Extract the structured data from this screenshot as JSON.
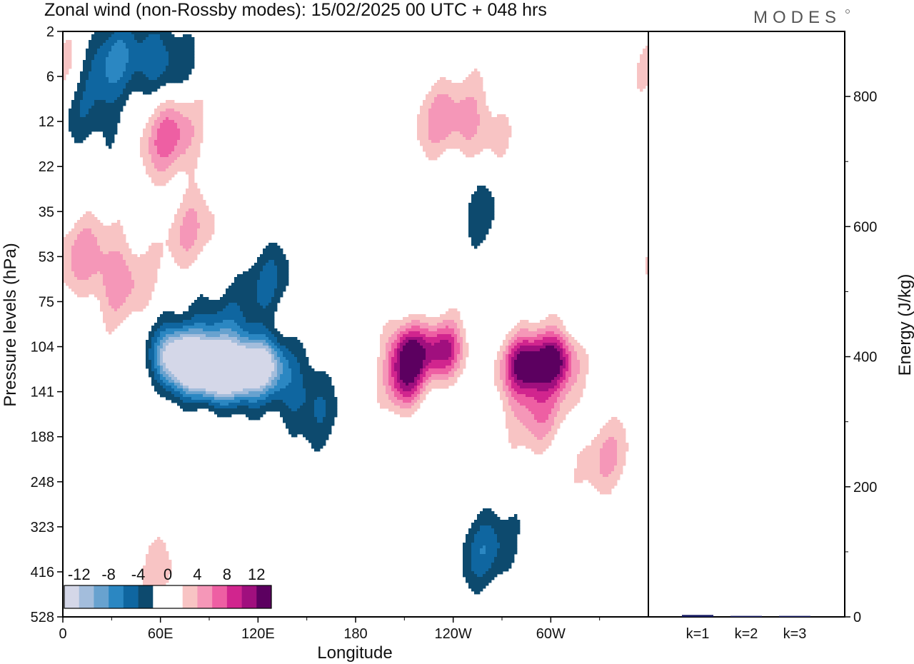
{
  "title": "Zonal wind (non-Rossby modes):  15/02/2025  00 UTC  + 048 hrs",
  "logo": "MODES",
  "colors": {
    "neg": [
      "#0d4a6e",
      "#0f66a0",
      "#2b87c2",
      "#68a2cf",
      "#a3bddc",
      "#d4d7e8"
    ],
    "pos": [
      "#f8c4c4",
      "#f597b8",
      "#ee5fa3",
      "#d1258e",
      "#a00f7e",
      "#5c0060"
    ],
    "energy_bar": "#1a1f66"
  },
  "chart_data": [
    {
      "type": "heatmap",
      "title": "Zonal wind (non-Rossby modes):  15/02/2025  00 UTC  + 048 hrs",
      "xlabel": "Longitude",
      "ylabel": "Pressure levels (hPa)",
      "x_ticks": [
        "0",
        "60E",
        "120E",
        "180",
        "120W",
        "60W"
      ],
      "x_tick_values": [
        0,
        60,
        120,
        180,
        240,
        300
      ],
      "xlim": [
        0,
        360
      ],
      "y_ticks": [
        "2",
        "6",
        "12",
        "22",
        "35",
        "53",
        "75",
        "104",
        "141",
        "188",
        "248",
        "323",
        "416",
        "528"
      ],
      "colorbar": {
        "labels": [
          "-12",
          "-8",
          "-4",
          "0",
          "4",
          "8",
          "12"
        ],
        "levels": [
          -14,
          -12,
          -10,
          -8,
          -6,
          -4,
          -2,
          2,
          4,
          6,
          8,
          10,
          12,
          14
        ]
      },
      "features": [
        {
          "lon": 75,
          "lev": 7.3,
          "value": -13
        },
        {
          "lon": 88,
          "lev": 7.5,
          "value": -11
        },
        {
          "lon": 100,
          "lev": 7.6,
          "value": -12
        },
        {
          "lon": 112,
          "lev": 7.5,
          "value": -11
        },
        {
          "lon": 125,
          "lev": 7.4,
          "value": -11
        },
        {
          "lon": 65,
          "lev": 7.2,
          "value": -8
        },
        {
          "lon": 95,
          "lev": 6.6,
          "value": -5
        },
        {
          "lon": 125,
          "lev": 5.5,
          "value": -4
        },
        {
          "lon": 150,
          "lev": 8.2,
          "value": -5
        },
        {
          "lon": 30,
          "lev": 0.7,
          "value": -6
        },
        {
          "lon": 60,
          "lev": 0.6,
          "value": -5
        },
        {
          "lon": 15,
          "lev": 1.8,
          "value": -4
        },
        {
          "lon": 260,
          "lev": 11.5,
          "value": -5
        },
        {
          "lon": 255,
          "lev": 3.8,
          "value": -3
        },
        {
          "lon": 213,
          "lev": 7.1,
          "value": 12
        },
        {
          "lon": 235,
          "lev": 7.1,
          "value": 10
        },
        {
          "lon": 210,
          "lev": 7.8,
          "value": 8
        },
        {
          "lon": 283,
          "lev": 7.4,
          "value": 11
        },
        {
          "lon": 302,
          "lev": 7.3,
          "value": 13
        },
        {
          "lon": 290,
          "lev": 8.3,
          "value": 6
        },
        {
          "lon": 65,
          "lev": 2.3,
          "value": 7
        },
        {
          "lon": 35,
          "lev": 5.5,
          "value": 5
        },
        {
          "lon": 10,
          "lev": 4.9,
          "value": 4
        },
        {
          "lon": 80,
          "lev": 4.5,
          "value": 4
        },
        {
          "lon": 230,
          "lev": 1.9,
          "value": 4
        },
        {
          "lon": 255,
          "lev": 2.1,
          "value": 4
        },
        {
          "lon": 335,
          "lev": 9.5,
          "value": 4
        },
        {
          "lon": 55,
          "lev": 11.8,
          "value": 3
        },
        {
          "lon": 3,
          "lev": 0.9,
          "value": 3
        }
      ]
    },
    {
      "type": "bar",
      "ylabel": "Energy (J/kg)",
      "categories": [
        "k=1",
        "k=2",
        "k=3"
      ],
      "values": [
        3,
        1.5,
        1.5
      ],
      "ylim": [
        0,
        900
      ],
      "y_ticks": [
        "0",
        "200",
        "400",
        "600",
        "800"
      ],
      "y_tick_values": [
        0,
        200,
        400,
        600,
        800
      ]
    }
  ]
}
